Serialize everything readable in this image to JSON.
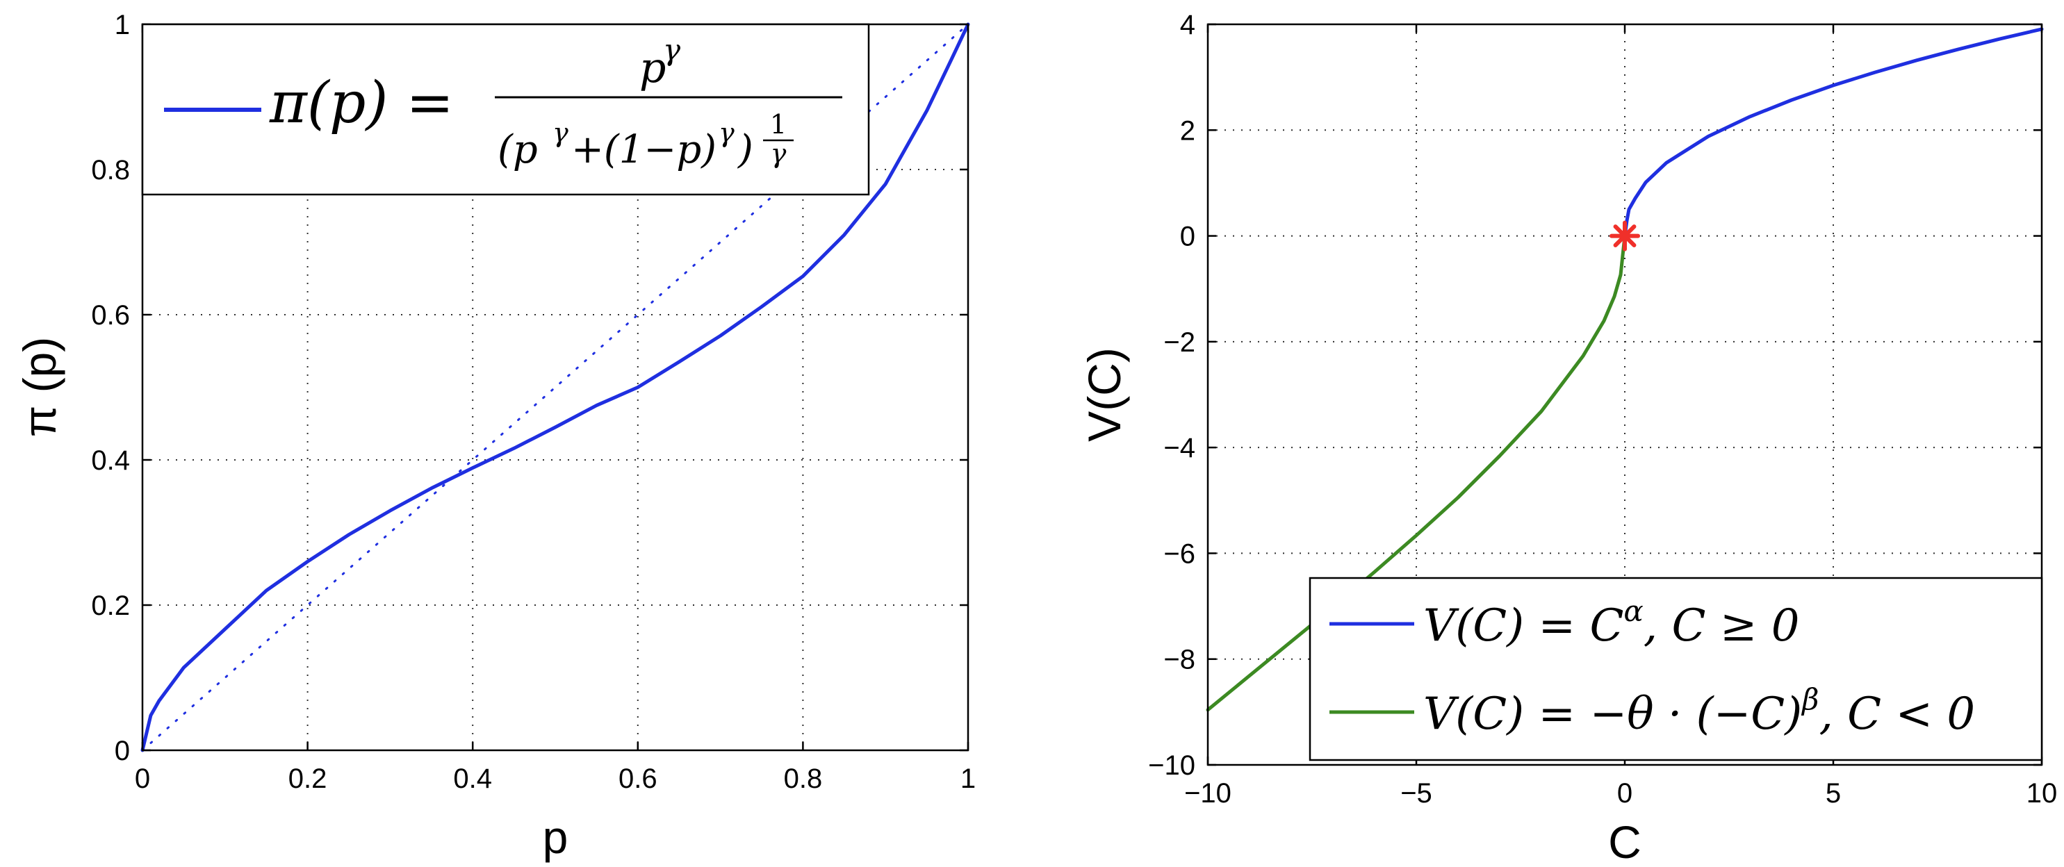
{
  "chart_data": [
    {
      "type": "line",
      "xlabel": "p",
      "ylabel": "π (p)",
      "xlim": [
        0,
        1
      ],
      "ylim": [
        0,
        1
      ],
      "grid": true,
      "legend_position": "top-left",
      "x_ticks": [
        "0",
        "0.2",
        "0.4",
        "0.6",
        "0.8",
        "1"
      ],
      "y_ticks": [
        "0",
        "0.2",
        "0.4",
        "0.6",
        "0.8",
        "1"
      ],
      "series": [
        {
          "name": "π(p) = p^γ / (p^γ + (1−p)^γ)^(1/γ)",
          "color": "#1f2fe0",
          "style": "solid",
          "x": [
            0,
            0.01,
            0.02,
            0.05,
            0.1,
            0.15,
            0.2,
            0.25,
            0.3,
            0.35,
            0.4,
            0.45,
            0.5,
            0.55,
            0.6,
            0.65,
            0.7,
            0.75,
            0.8,
            0.85,
            0.9,
            0.95,
            0.98,
            1.0
          ],
          "y": [
            0,
            0.048,
            0.068,
            0.114,
            0.167,
            0.22,
            0.26,
            0.297,
            0.33,
            0.361,
            0.389,
            0.416,
            0.445,
            0.475,
            0.5,
            0.535,
            0.571,
            0.611,
            0.653,
            0.71,
            0.78,
            0.881,
            0.952,
            1.0
          ]
        },
        {
          "name": "",
          "color": "#1f2fe0",
          "style": "dotted",
          "x": [
            0,
            1
          ],
          "y": [
            0,
            1
          ]
        }
      ]
    },
    {
      "type": "line",
      "xlabel": "C",
      "ylabel": "V(C)",
      "xlim": [
        -10,
        10
      ],
      "ylim": [
        -10,
        4
      ],
      "grid": true,
      "legend_position": "bottom-right",
      "x_ticks": [
        "−10",
        "−5",
        "0",
        "5",
        "10"
      ],
      "y_ticks": [
        "−10",
        "−8",
        "−6",
        "−4",
        "−2",
        "0",
        "2",
        "4"
      ],
      "series": [
        {
          "name": "V(C) = C^α, C ≥ 0",
          "color": "#1f2fe0",
          "x": [
            0,
            0.05,
            0.1,
            0.25,
            0.5,
            1,
            2,
            3,
            4,
            5,
            6,
            7,
            8,
            9,
            10
          ],
          "y": [
            0,
            0.289,
            0.503,
            0.71,
            1.011,
            1.384,
            1.88,
            2.254,
            2.569,
            2.845,
            3.093,
            3.32,
            3.529,
            3.725,
            3.91
          ]
        },
        {
          "name": "V(C) = −θ·(−C)^β, C < 0",
          "color": "#3c8a22",
          "x": [
            -10,
            -9,
            -8,
            -7,
            -6,
            -5,
            -4,
            -3,
            -2,
            -1,
            -0.5,
            -0.25,
            -0.1,
            0
          ],
          "y": [
            -8.96,
            -8.314,
            -7.668,
            -7.023,
            -6.35,
            -5.662,
            -4.946,
            -4.158,
            -3.315,
            -2.27,
            -1.607,
            -1.144,
            -0.735,
            0
          ]
        }
      ],
      "marker": {
        "x": 0,
        "y": 0,
        "color": "#f0302a"
      }
    }
  ],
  "legends": {
    "left": {
      "lhs": "π(p) = ",
      "num_base": "p",
      "num_exp": "γ",
      "den_open": "(p",
      "den_exp1": "γ",
      "den_mid": "+(1−p)",
      "den_exp2": "γ",
      "den_close": ")",
      "den_pow_num": "1",
      "den_pow_den": "γ"
    },
    "right": {
      "item1_a": "V(C) = C",
      "item1_sup": "α",
      "item1_b": ", C ≥ 0",
      "item2_a": "V(C) = −θ · (−C)",
      "item2_sup": "β",
      "item2_b": ", C < 0"
    }
  }
}
